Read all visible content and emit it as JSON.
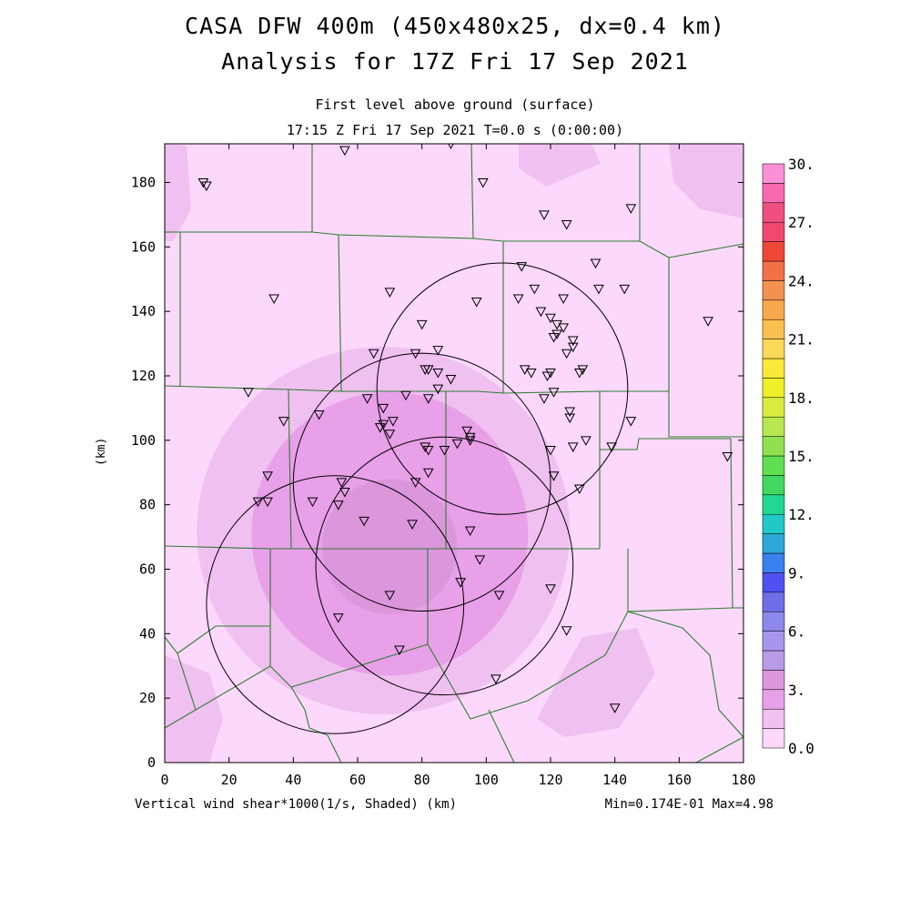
{
  "header": {
    "title_line1": "CASA DFW 400m (450x480x25, dx=0.4 km)",
    "title_line2": "Analysis for 17Z Fri 17 Sep 2021",
    "subtitle_line1": "First level above ground (surface)",
    "subtitle_line2": "17:15 Z Fri 17 Sep 2021    T=0.0 s (0:00:00)"
  },
  "footer": {
    "field_label": "Vertical wind shear*1000(1/s, Shaded)  (km)",
    "minmax": "Min=0.174E-01 Max=4.98"
  },
  "chart_data": {
    "type": "heatmap",
    "xlabel": "(km)",
    "ylabel": "(km)",
    "xlim": [
      0,
      180
    ],
    "ylim": [
      0,
      192
    ],
    "x_ticks": [
      0,
      20,
      40,
      60,
      80,
      100,
      120,
      140,
      160,
      180
    ],
    "y_ticks": [
      0,
      20,
      40,
      60,
      80,
      100,
      120,
      140,
      160,
      180
    ],
    "colorbar": {
      "min": 0.0,
      "max": 30.0,
      "interval": 1.5,
      "tick_labels": [
        "0.0",
        "3.",
        "6.",
        "9.",
        "12.",
        "15.",
        "18.",
        "21.",
        "24.",
        "27.",
        "30."
      ],
      "colors": [
        "#fcd8fc",
        "#f0c0f0",
        "#e8a0e8",
        "#dc96dc",
        "#b89be6",
        "#a896ee",
        "#8c88ec",
        "#6e6ee6",
        "#5050f0",
        "#3a80f0",
        "#2ca8d8",
        "#20c8c8",
        "#22d890",
        "#40d860",
        "#60e050",
        "#90e050",
        "#b8e850",
        "#d8ec40",
        "#eef028",
        "#fae83a",
        "#fcd858",
        "#fcc050",
        "#f8a84c",
        "#f49050",
        "#f07048",
        "#f04838",
        "#f04870",
        "#f05080",
        "#f868b0",
        "#fc90d8"
      ]
    },
    "shear_contours": [
      {
        "level": 1.5,
        "cx": 68,
        "cy": 72,
        "rx": 58,
        "ry": 57
      },
      {
        "level": 3.0,
        "cx": 70,
        "cy": 71,
        "rx": 43,
        "ry": 44
      },
      {
        "level": 4.5,
        "cx": 70,
        "cy": 67,
        "rx": 21,
        "ry": 21
      }
    ],
    "radar_rings": [
      {
        "cx": 105,
        "cy": 116,
        "r": 39
      },
      {
        "cx": 80,
        "cy": 87,
        "r": 40
      },
      {
        "cx": 53,
        "cy": 49,
        "r": 40
      },
      {
        "cx": 87,
        "cy": 61,
        "r": 40
      }
    ],
    "stations": [
      [
        12,
        180
      ],
      [
        13,
        179
      ],
      [
        56,
        190
      ],
      [
        89,
        192
      ],
      [
        99,
        180
      ],
      [
        118,
        170
      ],
      [
        125,
        167
      ],
      [
        145,
        172
      ],
      [
        34,
        144
      ],
      [
        70,
        146
      ],
      [
        97,
        143
      ],
      [
        111,
        154
      ],
      [
        134,
        155
      ],
      [
        135,
        147
      ],
      [
        143,
        147
      ],
      [
        115,
        147
      ],
      [
        117,
        140
      ],
      [
        124,
        144
      ],
      [
        110,
        144
      ],
      [
        85,
        128
      ],
      [
        65,
        127
      ],
      [
        78,
        127
      ],
      [
        81,
        122
      ],
      [
        82,
        122
      ],
      [
        80,
        136
      ],
      [
        120,
        138
      ],
      [
        122,
        136
      ],
      [
        124,
        135
      ],
      [
        122,
        133
      ],
      [
        121,
        132
      ],
      [
        127,
        131
      ],
      [
        127,
        129
      ],
      [
        125,
        127
      ],
      [
        112,
        122
      ],
      [
        114,
        121
      ],
      [
        119,
        120
      ],
      [
        120,
        121
      ],
      [
        129,
        121
      ],
      [
        130,
        122
      ],
      [
        169,
        137
      ],
      [
        26,
        115
      ],
      [
        37,
        106
      ],
      [
        48,
        108
      ],
      [
        63,
        113
      ],
      [
        68,
        110
      ],
      [
        71,
        106
      ],
      [
        68,
        105
      ],
      [
        67,
        104
      ],
      [
        70,
        102
      ],
      [
        75,
        114
      ],
      [
        82,
        113
      ],
      [
        85,
        121
      ],
      [
        85,
        116
      ],
      [
        89,
        119
      ],
      [
        118,
        113
      ],
      [
        121,
        115
      ],
      [
        126,
        109
      ],
      [
        126,
        107
      ],
      [
        139,
        98
      ],
      [
        145,
        106
      ],
      [
        120,
        97
      ],
      [
        127,
        98
      ],
      [
        131,
        100
      ],
      [
        94,
        103
      ],
      [
        95,
        100
      ],
      [
        95,
        101
      ],
      [
        91,
        99
      ],
      [
        87,
        97
      ],
      [
        81,
        98
      ],
      [
        82,
        97
      ],
      [
        32,
        89
      ],
      [
        29,
        81
      ],
      [
        32,
        81
      ],
      [
        46,
        81
      ],
      [
        55,
        87
      ],
      [
        56,
        84
      ],
      [
        54,
        80
      ],
      [
        62,
        75
      ],
      [
        78,
        87
      ],
      [
        82,
        90
      ],
      [
        77,
        74
      ],
      [
        121,
        89
      ],
      [
        129,
        85
      ],
      [
        95,
        72
      ],
      [
        98,
        63
      ],
      [
        92,
        56
      ],
      [
        70,
        52
      ],
      [
        54,
        45
      ],
      [
        73,
        35
      ],
      [
        104,
        52
      ],
      [
        120,
        54
      ],
      [
        125,
        41
      ],
      [
        103,
        26
      ],
      [
        140,
        17
      ],
      [
        175,
        95
      ]
    ]
  }
}
